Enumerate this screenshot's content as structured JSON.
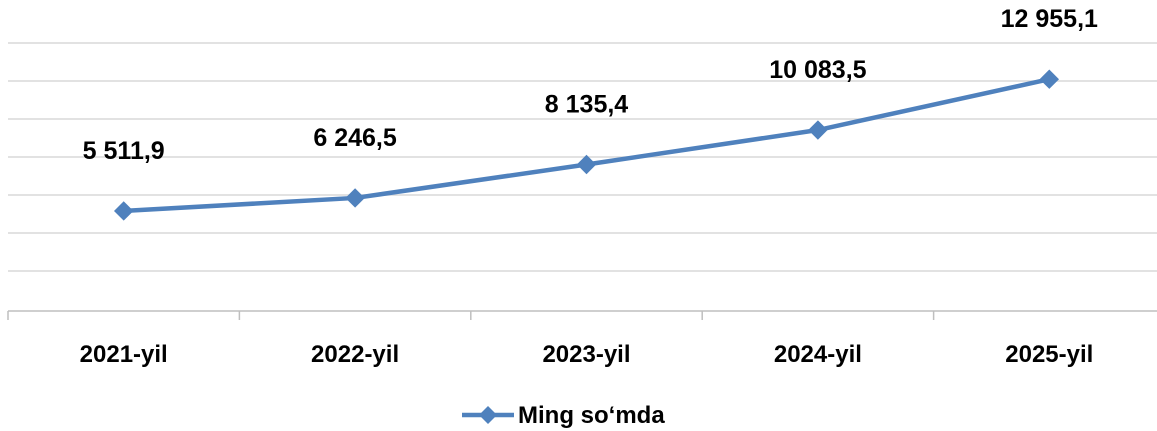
{
  "chart_data": {
    "type": "line",
    "categories": [
      "2021-yil",
      "2022-yil",
      "2023-yil",
      "2024-yil",
      "2025-yil"
    ],
    "series": [
      {
        "name": "Ming so‘mda",
        "values": [
          5511.9,
          6246.5,
          8135.4,
          10083.5,
          12955.1
        ],
        "labels": [
          "5 511,9",
          "6 246,5",
          "8 135,4",
          "10 083,5",
          "12 955,1"
        ],
        "color": "#4f81bd"
      }
    ],
    "ylim": [
      -28,
      15000
    ],
    "grid": true,
    "legend": "bottom-center"
  }
}
